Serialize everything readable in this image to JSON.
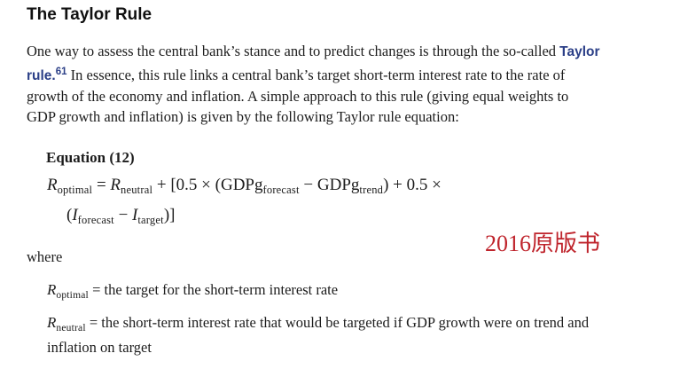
{
  "page": {
    "title": "The Taylor Rule"
  },
  "paragraph": {
    "line1_text": "One way to assess the central bank’s stance and to predict changes is through the so-called ",
    "line1_term": "Taylor",
    "line2_term": "rule.",
    "line2_footnote": "61",
    "line2_text": " In essence, this rule links a central bank’s target short-term interest rate to the rate of",
    "line3": "growth of the economy and inflation. A simple approach to this rule (giving equal weights to",
    "line4": "GDP growth and inflation) is given by the following Taylor rule equation:"
  },
  "equation": {
    "label": "Equation (12)",
    "line1": [
      "R",
      "optimal",
      " = ",
      "R",
      "neutral",
      " + [0.5 × (",
      "GDPg",
      "forecast",
      " − ",
      "GDPg",
      "trend",
      ") + 0.5 ×"
    ],
    "line2": [
      "(",
      "I",
      "forecast",
      " − ",
      "I",
      "target",
      ")]"
    ]
  },
  "where_label": "where",
  "definitions": [
    {
      "sym": "R",
      "sub": "optimal",
      "text": " = the target for the short-term interest rate",
      "text2": ""
    },
    {
      "sym": "R",
      "sub": "neutral",
      "text": " = the short-term interest rate that would be targeted if GDP growth were on trend and",
      "text2": "inflation on target"
    }
  ],
  "watermark": {
    "text": "2016原版书"
  },
  "colors": {
    "link_blue": "#2b3f87",
    "stamp_red": "#bf242c",
    "body_text": "#1c1c1c"
  }
}
